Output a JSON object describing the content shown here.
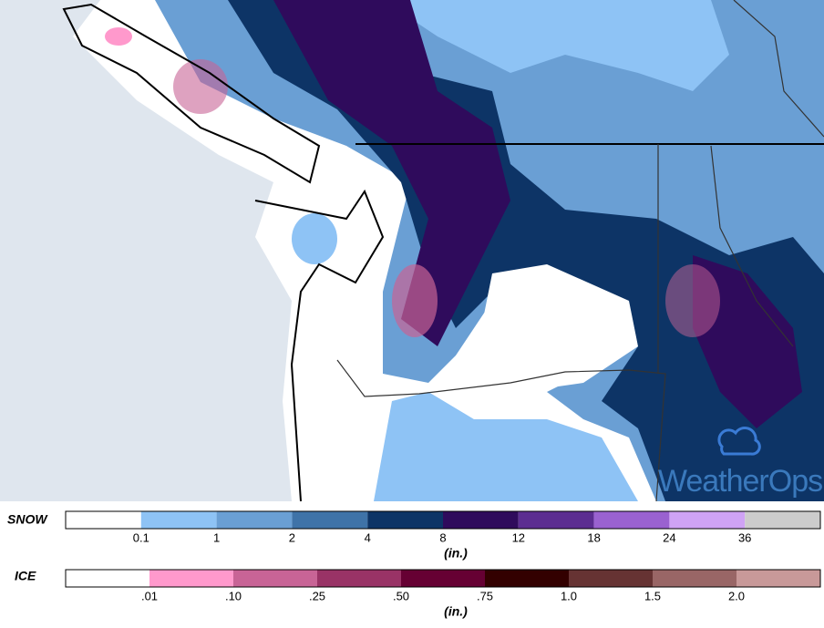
{
  "legend": {
    "snow": {
      "label": "SNOW",
      "colors": [
        "#ffffff",
        "#8ec3f5",
        "#6a9fd4",
        "#3f73a8",
        "#0d3466",
        "#2f0b5c",
        "#5c2d91",
        "#9a62d0",
        "#cfa3f5",
        "#cccccc"
      ],
      "ticks": [
        "0.1",
        "1",
        "2",
        "4",
        "8",
        "12",
        "18",
        "24",
        "36"
      ],
      "unit": "(in.)"
    },
    "ice": {
      "label": "ICE",
      "colors": [
        "#ffffff",
        "#ff99cc",
        "#c86496",
        "#993366",
        "#660033",
        "#330000",
        "#663333",
        "#996666",
        "#c89999"
      ],
      "ticks": [
        ".01",
        ".10",
        ".25",
        ".50",
        ".75",
        "1.0",
        "1.5",
        "2.0"
      ],
      "unit": "(in.)"
    }
  },
  "logo": "WeatherOps"
}
